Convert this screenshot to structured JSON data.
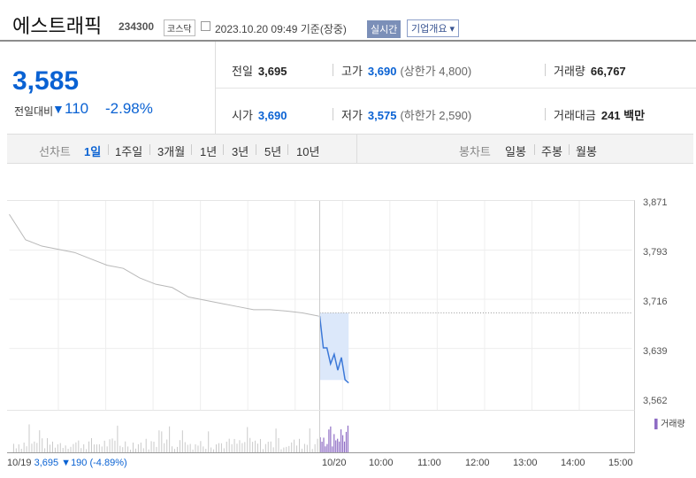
{
  "header": {
    "name": "에스트래픽",
    "code": "234300",
    "market": "코스닥",
    "date": "2023.10.20 09:49  기준(장중)",
    "realtime": "실시간",
    "company_info": "기업개요"
  },
  "quote": {
    "price": "3,585",
    "change_label": "전일대비",
    "change": "110",
    "change_pct": "-2.98%"
  },
  "stats": {
    "prev_label": "전일",
    "prev": "3,695",
    "high_label": "고가",
    "high": "3,690",
    "upper_limit": "(상한가 4,800)",
    "volume_label": "거래량",
    "volume": "66,767",
    "open_label": "시가",
    "open": "3,690",
    "low_label": "저가",
    "low": "3,575",
    "lower_limit": "(하한가 2,590)",
    "amount_label": "거래대금",
    "amount": "241 백만"
  },
  "chart_tabs": {
    "line_label": "선차트",
    "periods": [
      "1일",
      "1주일",
      "3개월",
      "1년",
      "3년",
      "5년",
      "10년"
    ],
    "candle_label": "봉차트",
    "candles": [
      "일봉",
      "주봉",
      "월봉"
    ]
  },
  "chart_data": {
    "type": "line",
    "y_ticks": [
      "3,871",
      "3,793",
      "3,716",
      "3,639",
      "3,562"
    ],
    "ylim": [
      3562,
      3871
    ],
    "x_ticks": [
      "10/20",
      "10:00",
      "11:00",
      "12:00",
      "13:00",
      "14:00",
      "15:00"
    ],
    "prev_day_label": "10/19",
    "prev_close_ref": 3695,
    "prev_day_summary": "3,695 ▼190 (-4.89%)",
    "volume_legend": "거래량",
    "series": [
      {
        "values": [
          3850,
          3810,
          3800,
          3795,
          3790,
          3780,
          3770,
          3765,
          3750,
          3740,
          3735,
          3720,
          3715,
          3710,
          3705,
          3700,
          3700,
          3698,
          3695,
          3690
        ]
      },
      {
        "values": [
          3690,
          3640,
          3640,
          3615,
          3630,
          3605,
          3625,
          3590,
          3585
        ]
      }
    ],
    "colors": {
      "prev": "#b8b8b8",
      "today": "#3b78d8",
      "today_fill": "#dce8fa",
      "volume_prev": "#c8c8c8",
      "volume_today": "#8e6cc4"
    }
  }
}
